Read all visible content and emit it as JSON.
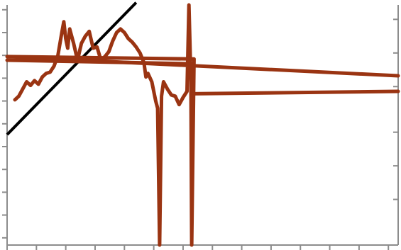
{
  "chart_data": {
    "type": "line",
    "title": "",
    "xlabel": "",
    "ylabel": "",
    "xlim": [
      0,
      100
    ],
    "ylim": [
      0,
      100
    ],
    "grid": false,
    "legend": "none",
    "colors": {
      "series": "#9a3412",
      "reference": "#000000",
      "axis": "#8c8c8c"
    },
    "axes": {
      "x_ticks": [
        0,
        7.5,
        15,
        22.5,
        30,
        37.5,
        45,
        52.5,
        60,
        67.5,
        75,
        82.5,
        90,
        97.5
      ],
      "y_left_ticks": [
        3,
        12.5,
        22,
        31.5,
        41,
        50.5,
        60,
        69.5,
        79,
        88.5,
        98
      ],
      "y_right_ticks": [
        19,
        33,
        47,
        66,
        80,
        94
      ]
    },
    "series": [
      {
        "values": [
          [
            2.0,
            60.5
          ],
          [
            3.0,
            62.0
          ],
          [
            4.0,
            65.0
          ],
          [
            5.0,
            68.0
          ],
          [
            6.0,
            66.5
          ],
          [
            7.0,
            68.5
          ],
          [
            8.0,
            67.0
          ],
          [
            9.0,
            70.0
          ],
          [
            10.0,
            71.5
          ],
          [
            11.0,
            72.0
          ],
          [
            12.0,
            74.5
          ],
          [
            13.0,
            79.0
          ],
          [
            14.0,
            88.5
          ],
          [
            14.5,
            93.0
          ],
          [
            15.0,
            86.0
          ],
          [
            15.5,
            82.0
          ],
          [
            16.0,
            90.0
          ],
          [
            17.0,
            84.0
          ],
          [
            18.0,
            77.0
          ],
          [
            19.0,
            84.0
          ],
          [
            20.0,
            87.0
          ],
          [
            21.0,
            89.0
          ],
          [
            22.0,
            82.0
          ],
          [
            23.0,
            82.5
          ],
          [
            24.0,
            77.0
          ],
          [
            25.0,
            78.5
          ],
          [
            26.0,
            80.5
          ],
          [
            27.0,
            85.0
          ],
          [
            28.0,
            88.5
          ],
          [
            29.0,
            90.0
          ],
          [
            30.0,
            88.5
          ],
          [
            31.0,
            86.0
          ],
          [
            32.0,
            84.5
          ],
          [
            33.0,
            82.5
          ],
          [
            34.0,
            80.0
          ],
          [
            35.0,
            76.0
          ],
          [
            35.5,
            70.0
          ],
          [
            36.0,
            71.5
          ],
          [
            37.0,
            68.0
          ],
          [
            38.0,
            60.0
          ],
          [
            38.5,
            57.0
          ],
          [
            39.0,
            0.0
          ],
          [
            39.5,
            62.0
          ],
          [
            40.0,
            68.0
          ],
          [
            41.0,
            65.0
          ],
          [
            42.0,
            62.5
          ],
          [
            43.0,
            62.0
          ],
          [
            44.0,
            58.5
          ],
          [
            45.0,
            61.5
          ],
          [
            46.0,
            64.0
          ],
          [
            46.5,
            100.0
          ],
          [
            47.0,
            68.0
          ],
          [
            47.2,
            0.0
          ],
          [
            47.8,
            77.5
          ],
          [
            0.0,
            78.5
          ],
          [
            100.0,
            70.5
          ]
        ]
      },
      {
        "values": [
          [
            0.0,
            77.0
          ],
          [
            47.5,
            75.5
          ],
          [
            47.5,
            63.0
          ],
          [
            100.0,
            64.0
          ]
        ]
      }
    ],
    "reference_line": {
      "values": [
        [
          0.0,
          46.0
        ],
        [
          33.0,
          101.0
        ]
      ]
    }
  }
}
